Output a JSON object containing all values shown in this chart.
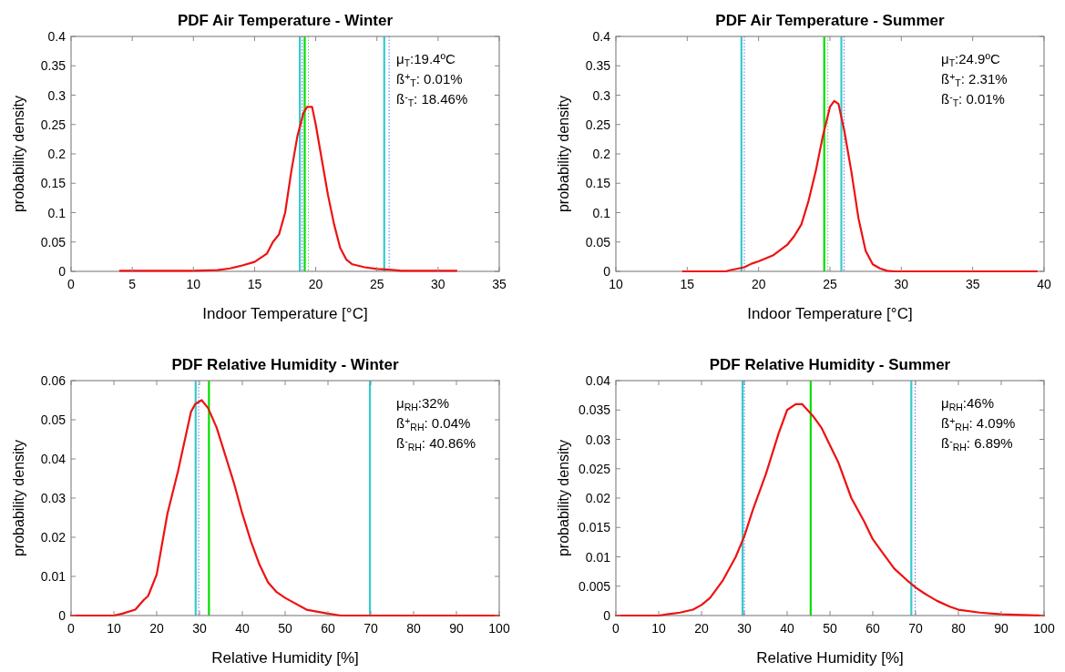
{
  "chart_data": [
    {
      "type": "line",
      "title": "PDF Air Temperature - Winter",
      "xlabel": "Indoor Temperature [°C]",
      "ylabel": "probability density",
      "xlim": [
        0,
        35
      ],
      "xticks": [
        0,
        5,
        10,
        15,
        20,
        25,
        30,
        35
      ],
      "ylim": [
        0,
        0.4
      ],
      "yticks": [
        0,
        0.05,
        0.1,
        0.15,
        0.2,
        0.25,
        0.3,
        0.35,
        0.4
      ],
      "grid": false,
      "marker": "none",
      "line_style": "solid",
      "series": [
        {
          "color": "#ee1111",
          "x": [
            4,
            10,
            12,
            13,
            14,
            15,
            16,
            16.5,
            17,
            17.5,
            18,
            18.5,
            19,
            19.3,
            19.7,
            20,
            20.5,
            21,
            21.5,
            22,
            22.5,
            23,
            24,
            25,
            26,
            27,
            31.5
          ],
          "values": [
            0.001,
            0.001,
            0.002,
            0.005,
            0.01,
            0.016,
            0.03,
            0.05,
            0.063,
            0.1,
            0.17,
            0.23,
            0.27,
            0.28,
            0.28,
            0.25,
            0.19,
            0.13,
            0.08,
            0.04,
            0.02,
            0.012,
            0.007,
            0.004,
            0.003,
            0.001,
            0.001
          ]
        }
      ],
      "ref_lines": [
        {
          "axis": "x",
          "value": 18.7,
          "color": "#33cccc",
          "line_style": "solid"
        },
        {
          "axis": "x",
          "value": 18.9,
          "color": "#6666ff",
          "line_style": "dotted"
        },
        {
          "axis": "x",
          "value": 19.1,
          "color": "#00e000",
          "line_style": "solid"
        },
        {
          "axis": "x",
          "value": 19.4,
          "color": "#66cc66",
          "line_style": "dotted"
        },
        {
          "axis": "x",
          "value": 25.6,
          "color": "#33cccc",
          "line_style": "solid"
        },
        {
          "axis": "x",
          "value": 26,
          "color": "#6666ff",
          "line_style": "dotted"
        }
      ],
      "annotations": [
        "μ$_{T}$:19.4ºC",
        "ß$^{+}$$_{T}$: 0.01%",
        "ß$^{-}$$_{T}$: 18.46%"
      ]
    },
    {
      "type": "line",
      "title": "PDF Air Temperature - Summer",
      "xlabel": "Indoor Temperature [°C]",
      "ylabel": "probability density",
      "xlim": [
        10,
        40
      ],
      "xticks": [
        10,
        15,
        20,
        25,
        30,
        35,
        40
      ],
      "ylim": [
        0,
        0.4
      ],
      "yticks": [
        0,
        0.05,
        0.1,
        0.15,
        0.2,
        0.25,
        0.3,
        0.35,
        0.4
      ],
      "grid": false,
      "marker": "none",
      "line_style": "solid",
      "series": [
        {
          "color": "#ee1111",
          "x": [
            14.7,
            17.7,
            18,
            19,
            19.5,
            20,
            21,
            22,
            22.5,
            23,
            23.5,
            24,
            24.5,
            25,
            25.3,
            25.6,
            26,
            26.5,
            27,
            27.5,
            28,
            28.5,
            29,
            29.5,
            39.5
          ],
          "values": [
            0,
            0,
            0.002,
            0.007,
            0.013,
            0.017,
            0.027,
            0.045,
            0.06,
            0.08,
            0.12,
            0.17,
            0.23,
            0.28,
            0.29,
            0.285,
            0.24,
            0.17,
            0.09,
            0.035,
            0.012,
            0.005,
            0.001,
            0,
            0
          ]
        }
      ],
      "ref_lines": [
        {
          "axis": "x",
          "value": 18.8,
          "color": "#33cccc",
          "line_style": "solid"
        },
        {
          "axis": "x",
          "value": 19,
          "color": "#6666ff",
          "line_style": "dotted"
        },
        {
          "axis": "x",
          "value": 24.6,
          "color": "#00e000",
          "line_style": "solid"
        },
        {
          "axis": "x",
          "value": 24.85,
          "color": "#66cc66",
          "line_style": "dotted"
        },
        {
          "axis": "x",
          "value": 25.8,
          "color": "#33cccc",
          "line_style": "solid"
        },
        {
          "axis": "x",
          "value": 26,
          "color": "#6666ff",
          "line_style": "dotted"
        }
      ],
      "annotations": [
        "μ$_{T}$:24.9ºC",
        "ß$^{+}$$_{T}$: 2.31%",
        "ß$^{-}$$_{T}$: 0.01%"
      ]
    },
    {
      "type": "line",
      "title": "PDF Relative Humidity - Winter",
      "xlabel": "Relative Humidity [%]",
      "ylabel": "probability density",
      "xlim": [
        0,
        100
      ],
      "xticks": [
        0,
        10,
        20,
        30,
        40,
        50,
        60,
        70,
        80,
        90,
        100
      ],
      "ylim": [
        0,
        0.06
      ],
      "yticks": [
        0,
        0.01,
        0.02,
        0.03,
        0.04,
        0.05,
        0.06
      ],
      "grid": false,
      "marker": "none",
      "line_style": "solid",
      "series": [
        {
          "color": "#ee1111",
          "x": [
            0,
            10,
            12,
            15,
            17,
            18,
            20,
            22.5,
            25,
            27,
            28,
            29,
            30.5,
            32,
            34,
            36,
            38,
            40,
            42,
            44,
            46,
            48,
            50,
            55,
            60,
            63,
            100
          ],
          "values": [
            0,
            0,
            0.0005,
            0.0015,
            0.004,
            0.005,
            0.0105,
            0.026,
            0.037,
            0.047,
            0.052,
            0.054,
            0.055,
            0.053,
            0.048,
            0.041,
            0.034,
            0.026,
            0.019,
            0.013,
            0.0085,
            0.006,
            0.0045,
            0.0015,
            0.0005,
            0,
            0
          ]
        }
      ],
      "ref_lines": [
        {
          "axis": "x",
          "value": 29.1,
          "color": "#33cccc",
          "line_style": "solid"
        },
        {
          "axis": "x",
          "value": 29.8,
          "color": "#6666ff",
          "line_style": "dotted"
        },
        {
          "axis": "x",
          "value": 32.2,
          "color": "#00e000",
          "line_style": "solid"
        },
        {
          "axis": "x",
          "value": 69.8,
          "color": "#33cccc",
          "line_style": "solid"
        }
      ],
      "annotations": [
        "μ$_{RH}$:32%",
        "ß$^{+}$$_{RH}$: 0.04%",
        "ß$^{-}$$_{RH}$: 40.86%"
      ]
    },
    {
      "type": "line",
      "title": "PDF Relative Humidity - Summer",
      "xlabel": "Relative Humidity [%]",
      "ylabel": "probability density",
      "xlim": [
        0,
        100
      ],
      "xticks": [
        0,
        10,
        20,
        30,
        40,
        50,
        60,
        70,
        80,
        90,
        100
      ],
      "ylim": [
        0,
        0.04
      ],
      "yticks": [
        0,
        0.005,
        0.01,
        0.015,
        0.02,
        0.025,
        0.03,
        0.035,
        0.04
      ],
      "grid": false,
      "marker": "none",
      "line_style": "solid",
      "series": [
        {
          "color": "#ee1111",
          "x": [
            0,
            10,
            12,
            15,
            18,
            20,
            22,
            25,
            28,
            30,
            32,
            35,
            38,
            40,
            42,
            43.5,
            46,
            48,
            50,
            52,
            55,
            58,
            60,
            62,
            65,
            68,
            70,
            72,
            75,
            78,
            80,
            85,
            90,
            95,
            100
          ],
          "values": [
            0,
            0,
            0.0002,
            0.0005,
            0.001,
            0.0018,
            0.003,
            0.006,
            0.01,
            0.0135,
            0.018,
            0.024,
            0.031,
            0.035,
            0.036,
            0.036,
            0.034,
            0.032,
            0.029,
            0.026,
            0.02,
            0.016,
            0.013,
            0.011,
            0.008,
            0.006,
            0.0048,
            0.0038,
            0.0025,
            0.0015,
            0.001,
            0.0005,
            0.0002,
            0.0001,
            0
          ]
        }
      ],
      "ref_lines": [
        {
          "axis": "x",
          "value": 29.6,
          "color": "#33cccc",
          "line_style": "solid"
        },
        {
          "axis": "x",
          "value": 30,
          "color": "#6666ff",
          "line_style": "dotted"
        },
        {
          "axis": "x",
          "value": 45.5,
          "color": "#00e000",
          "line_style": "solid"
        },
        {
          "axis": "x",
          "value": 69,
          "color": "#33cccc",
          "line_style": "solid"
        },
        {
          "axis": "x",
          "value": 69.9,
          "color": "#6666ff",
          "line_style": "dotted"
        }
      ],
      "annotations": [
        "μ$_{RH}$:46%",
        "ß$^{+}$$_{RH}$: 4.09%",
        "ß$^{-}$$_{RH}$: 6.89%"
      ]
    }
  ]
}
